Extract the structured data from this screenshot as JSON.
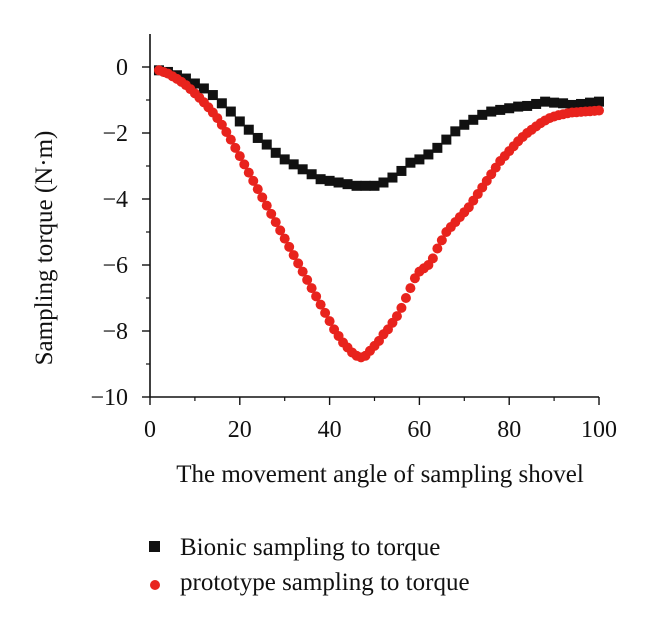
{
  "chart_data": {
    "type": "scatter",
    "title": "",
    "xlabel": "The movement angle of sampling shovel",
    "ylabel": "Sampling torque (N·m)",
    "xlim": [
      0,
      100
    ],
    "ylim": [
      -10,
      1
    ],
    "xticks": [
      0,
      20,
      40,
      60,
      80,
      100
    ],
    "xtick_labels": [
      "0",
      "20",
      "40",
      "60",
      "80",
      "100"
    ],
    "yticks": [
      0,
      -2,
      -4,
      -6,
      -8,
      -10
    ],
    "ytick_labels": [
      "0",
      "−2",
      "−4",
      "−6",
      "−8",
      "−10"
    ],
    "grid": false,
    "legend_position": "bottom",
    "series": [
      {
        "name": "Bionic sampling to torque",
        "marker": "square",
        "color": "#111111",
        "x": [
          2,
          4,
          6,
          8,
          10,
          12,
          14,
          16,
          18,
          20,
          22,
          24,
          26,
          28,
          30,
          32,
          34,
          36,
          38,
          40,
          42,
          44,
          46,
          48,
          50,
          52,
          54,
          56,
          58,
          60,
          62,
          64,
          66,
          68,
          70,
          72,
          74,
          76,
          78,
          80,
          82,
          84,
          86,
          88,
          90,
          92,
          94,
          96,
          98,
          100
        ],
        "y": [
          -0.1,
          -0.15,
          -0.25,
          -0.35,
          -0.5,
          -0.65,
          -0.85,
          -1.1,
          -1.35,
          -1.65,
          -1.9,
          -2.15,
          -2.35,
          -2.6,
          -2.8,
          -2.95,
          -3.1,
          -3.25,
          -3.4,
          -3.45,
          -3.5,
          -3.55,
          -3.6,
          -3.6,
          -3.6,
          -3.5,
          -3.35,
          -3.15,
          -2.9,
          -2.8,
          -2.65,
          -2.45,
          -2.2,
          -1.95,
          -1.75,
          -1.6,
          -1.45,
          -1.35,
          -1.3,
          -1.25,
          -1.2,
          -1.18,
          -1.12,
          -1.05,
          -1.08,
          -1.1,
          -1.15,
          -1.12,
          -1.08,
          -1.05
        ]
      },
      {
        "name": "prototype sampling to torque",
        "marker": "circle",
        "color": "#e8231d",
        "x": [
          2,
          3,
          4,
          5,
          6,
          7,
          8,
          9,
          10,
          11,
          12,
          13,
          14,
          15,
          16,
          17,
          18,
          19,
          20,
          21,
          22,
          23,
          24,
          25,
          26,
          27,
          28,
          29,
          30,
          31,
          32,
          33,
          34,
          35,
          36,
          37,
          38,
          39,
          40,
          41,
          42,
          43,
          44,
          45,
          46,
          47,
          48,
          49,
          50,
          51,
          52,
          53,
          54,
          55,
          56,
          57,
          58,
          59,
          60,
          61,
          62,
          63,
          64,
          65,
          66,
          67,
          68,
          69,
          70,
          71,
          72,
          73,
          74,
          75,
          76,
          77,
          78,
          79,
          80,
          81,
          82,
          83,
          84,
          85,
          86,
          87,
          88,
          89,
          90,
          91,
          92,
          93,
          94,
          95,
          96,
          97,
          98,
          99,
          100
        ],
        "y": [
          -0.1,
          -0.15,
          -0.2,
          -0.28,
          -0.36,
          -0.45,
          -0.55,
          -0.67,
          -0.8,
          -0.93,
          -1.07,
          -1.22,
          -1.38,
          -1.55,
          -1.75,
          -1.97,
          -2.2,
          -2.45,
          -2.7,
          -2.95,
          -3.2,
          -3.45,
          -3.7,
          -3.95,
          -4.2,
          -4.45,
          -4.7,
          -4.95,
          -5.2,
          -5.45,
          -5.7,
          -5.95,
          -6.2,
          -6.45,
          -6.7,
          -6.95,
          -7.2,
          -7.45,
          -7.7,
          -7.95,
          -8.15,
          -8.35,
          -8.5,
          -8.65,
          -8.75,
          -8.8,
          -8.75,
          -8.6,
          -8.45,
          -8.3,
          -8.1,
          -7.95,
          -7.75,
          -7.55,
          -7.3,
          -7.0,
          -6.7,
          -6.4,
          -6.2,
          -6.1,
          -6.0,
          -5.8,
          -5.5,
          -5.25,
          -5.0,
          -4.85,
          -4.7,
          -4.55,
          -4.4,
          -4.25,
          -4.05,
          -3.85,
          -3.65,
          -3.45,
          -3.25,
          -3.05,
          -2.85,
          -2.7,
          -2.55,
          -2.4,
          -2.25,
          -2.12,
          -2.0,
          -1.9,
          -1.8,
          -1.7,
          -1.62,
          -1.55,
          -1.5,
          -1.46,
          -1.43,
          -1.4,
          -1.38,
          -1.37,
          -1.36,
          -1.35,
          -1.34,
          -1.33,
          -1.32
        ]
      }
    ]
  }
}
